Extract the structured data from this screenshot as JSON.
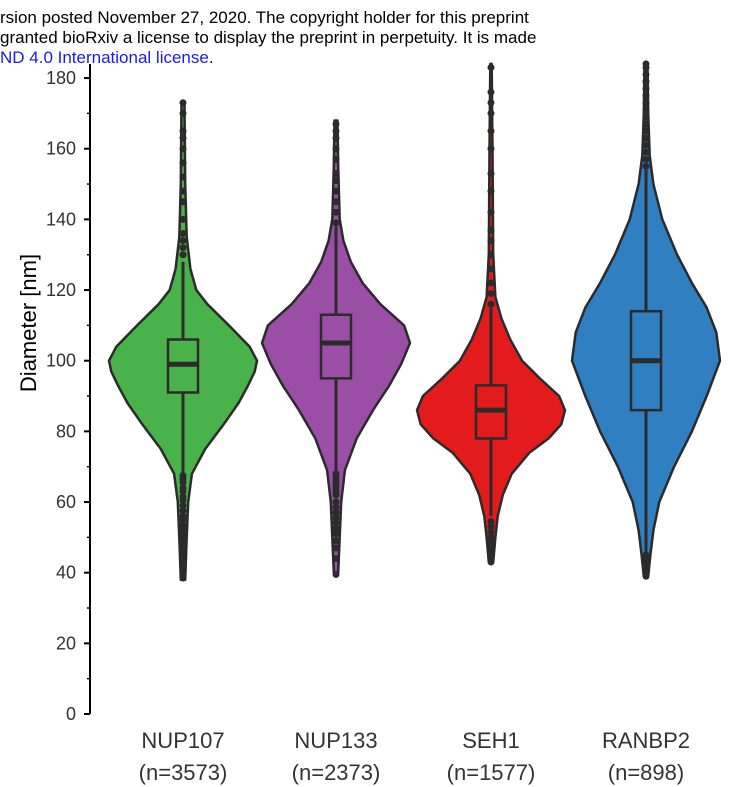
{
  "header": {
    "line1": "rsion posted November 27, 2020. The copyright holder for this preprint",
    "line2": "granted bioRxiv a license to display the preprint in perpetuity. It is made",
    "line3_link": "ND 4.0 International license",
    "line3_tail": "."
  },
  "chart_data": {
    "type": "violin",
    "ylabel": "Diameter [nm]",
    "ylim": [
      0,
      185
    ],
    "yticks": [
      0,
      20,
      40,
      60,
      80,
      100,
      120,
      140,
      160,
      180
    ],
    "categories": [
      "NUP107",
      "NUP133",
      "SEH1",
      "RANBP2"
    ],
    "category_counts": [
      "(n=3573)",
      "(n=2373)",
      "(n=1577)",
      "(n=898)"
    ],
    "colors": [
      "#4ab24a",
      "#9b4ea6",
      "#e41b1c",
      "#2f7fc1"
    ],
    "series": [
      {
        "median": 99,
        "q1": 91,
        "q3": 106,
        "whisker_low": 68,
        "whisker_high": 128,
        "violin_profile": [
          [
            38,
            0.03
          ],
          [
            50,
            0.05
          ],
          [
            60,
            0.07
          ],
          [
            68,
            0.12
          ],
          [
            75,
            0.3
          ],
          [
            82,
            0.55
          ],
          [
            88,
            0.75
          ],
          [
            93,
            0.88
          ],
          [
            97,
            0.97
          ],
          [
            100,
            1.0
          ],
          [
            104,
            0.9
          ],
          [
            110,
            0.62
          ],
          [
            116,
            0.33
          ],
          [
            120,
            0.18
          ],
          [
            126,
            0.1
          ],
          [
            135,
            0.05
          ],
          [
            150,
            0.03
          ],
          [
            173,
            0.02
          ]
        ],
        "outliers": [
          38.5,
          39.5,
          41,
          42,
          43.5,
          45,
          46,
          47,
          48.5,
          50,
          51,
          52.5,
          53.5,
          55,
          56,
          57.5,
          59,
          60.5,
          61.5,
          63,
          64,
          65.5,
          66.5,
          67.5,
          130,
          132,
          134,
          136,
          140,
          145,
          148,
          152,
          156,
          160,
          163,
          165,
          170,
          173
        ]
      },
      {
        "median": 105,
        "q1": 95,
        "q3": 113,
        "whisker_low": 69,
        "whisker_high": 138,
        "violin_profile": [
          [
            40,
            0.03
          ],
          [
            50,
            0.05
          ],
          [
            60,
            0.07
          ],
          [
            69,
            0.12
          ],
          [
            78,
            0.28
          ],
          [
            86,
            0.5
          ],
          [
            93,
            0.72
          ],
          [
            99,
            0.88
          ],
          [
            105,
            1.0
          ],
          [
            110,
            0.92
          ],
          [
            116,
            0.6
          ],
          [
            122,
            0.36
          ],
          [
            128,
            0.2
          ],
          [
            134,
            0.1
          ],
          [
            140,
            0.05
          ],
          [
            155,
            0.03
          ],
          [
            168,
            0.02
          ]
        ],
        "outliers": [
          39.5,
          44,
          47,
          49,
          51,
          52.5,
          54,
          55.5,
          57,
          58.5,
          60,
          62,
          63,
          64,
          65,
          66,
          67,
          68,
          139,
          142,
          145,
          148,
          151,
          153,
          157,
          160,
          163,
          165,
          167
        ]
      },
      {
        "median": 86,
        "q1": 78,
        "q3": 93,
        "whisker_low": 56,
        "whisker_high": 115,
        "violin_profile": [
          [
            43,
            0.03
          ],
          [
            50,
            0.06
          ],
          [
            56,
            0.09
          ],
          [
            62,
            0.16
          ],
          [
            68,
            0.28
          ],
          [
            74,
            0.52
          ],
          [
            78,
            0.78
          ],
          [
            82,
            0.95
          ],
          [
            86,
            1.0
          ],
          [
            90,
            0.92
          ],
          [
            95,
            0.66
          ],
          [
            100,
            0.42
          ],
          [
            106,
            0.26
          ],
          [
            112,
            0.14
          ],
          [
            118,
            0.06
          ],
          [
            130,
            0.03
          ],
          [
            160,
            0.02
          ],
          [
            184,
            0.01
          ]
        ],
        "outliers": [
          43,
          44,
          45.5,
          47,
          48.5,
          50,
          51.5,
          53,
          54.5,
          116,
          119,
          122,
          126,
          130,
          134,
          137,
          142,
          148,
          153,
          160,
          165,
          170,
          173,
          176,
          183
        ]
      },
      {
        "median": 100,
        "q1": 86,
        "q3": 114,
        "whisker_low": 46,
        "whisker_high": 154,
        "violin_profile": [
          [
            39,
            0.03
          ],
          [
            45,
            0.06
          ],
          [
            52,
            0.1
          ],
          [
            60,
            0.18
          ],
          [
            70,
            0.38
          ],
          [
            80,
            0.62
          ],
          [
            90,
            0.82
          ],
          [
            100,
            1.0
          ],
          [
            108,
            0.95
          ],
          [
            115,
            0.82
          ],
          [
            122,
            0.62
          ],
          [
            130,
            0.42
          ],
          [
            140,
            0.22
          ],
          [
            150,
            0.1
          ],
          [
            158,
            0.05
          ],
          [
            170,
            0.03
          ],
          [
            184,
            0.02
          ]
        ],
        "outliers": [
          39,
          40,
          41,
          42,
          43,
          44,
          45,
          155,
          157,
          159,
          161,
          163,
          165,
          167,
          169,
          171,
          173,
          175,
          177,
          179,
          181,
          183,
          184
        ]
      }
    ]
  }
}
